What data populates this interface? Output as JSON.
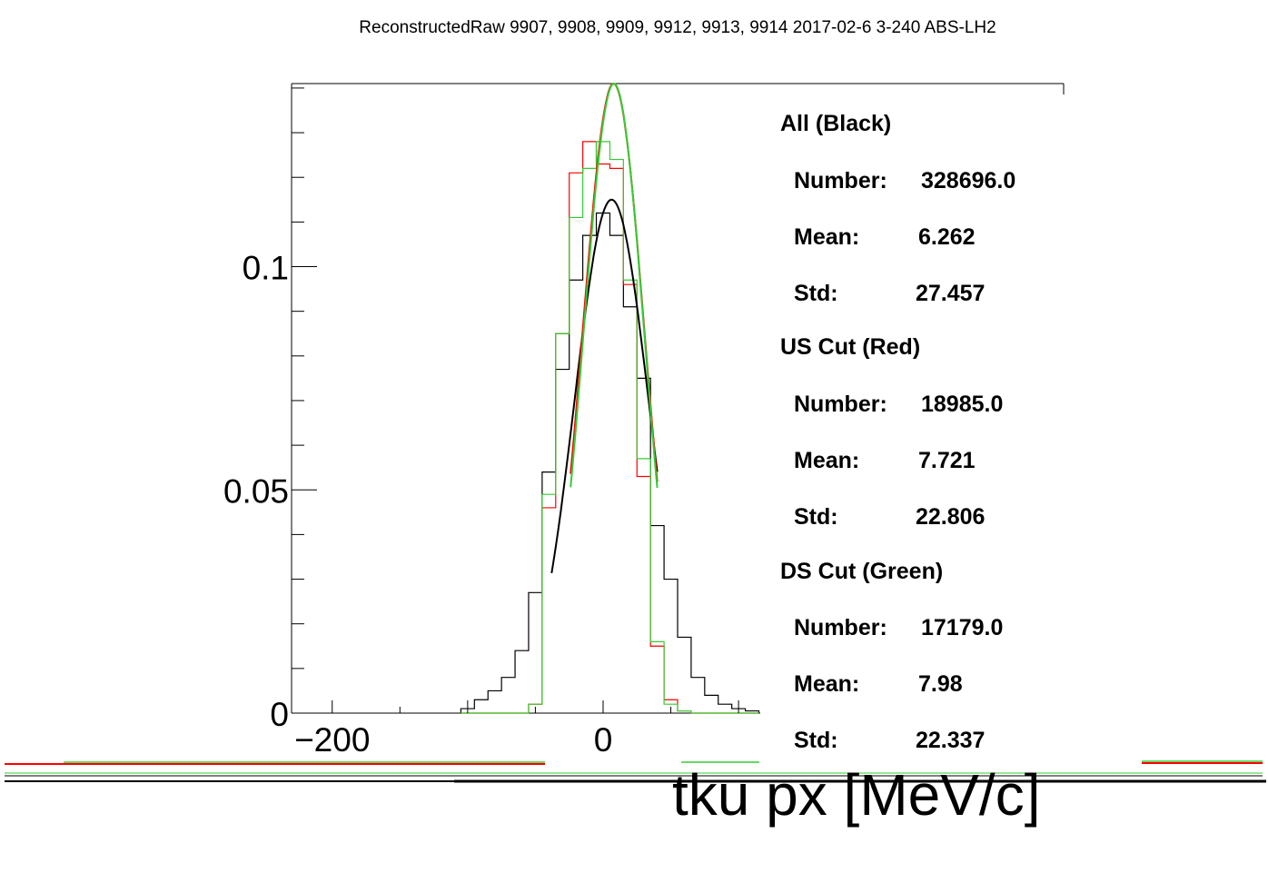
{
  "title": "ReconstructedRaw 9907, 9908, 9909, 9912, 9913, 9914 2017-02-6 3-240 ABS-LH2",
  "chart_data": {
    "type": "histogram",
    "xlabel": "tku px [MeV/c]",
    "ylabel": "",
    "xlim": [
      -230,
      340
    ],
    "ylim": [
      0,
      0.141
    ],
    "x_ticks": [
      "−200",
      "0"
    ],
    "y_ticks": [
      "0",
      "0.05",
      "0.1"
    ],
    "y_tick_values": [
      0,
      0.05,
      0.1
    ],
    "bin_width": 10,
    "bin_centers": [
      -100,
      -90,
      -80,
      -70,
      -60,
      -50,
      -40,
      -30,
      -20,
      -10,
      0,
      10,
      20,
      30,
      40,
      50,
      60,
      70,
      80,
      90,
      100,
      110
    ],
    "series": [
      {
        "name": "All (Black)",
        "color": "#000000",
        "values": [
          0.001,
          0.003,
          0.005,
          0.008,
          0.014,
          0.027,
          0.054,
          0.077,
          0.097,
          0.107,
          0.112,
          0.107,
          0.091,
          0.075,
          0.042,
          0.03,
          0.017,
          0.008,
          0.004,
          0.002,
          0.001,
          0.0005
        ],
        "fit": {
          "mean": 6.262,
          "sigma": 27.457,
          "peak": 0.115,
          "range": [
            -38,
            40
          ]
        }
      },
      {
        "name": "US Cut (Red)",
        "color": "#ff0000",
        "values": [
          0,
          0,
          0,
          0,
          0,
          0.002,
          0.046,
          0.085,
          0.121,
          0.128,
          0.123,
          0.122,
          0.096,
          0.053,
          0.015,
          0.003,
          0.0005,
          0,
          0,
          0,
          0,
          0
        ],
        "fit": {
          "mean": 7.721,
          "sigma": 22.806,
          "peak": 0.141,
          "range": [
            -24,
            40
          ]
        }
      },
      {
        "name": "DS Cut (Green)",
        "color": "#33cc33",
        "values": [
          0,
          0,
          0,
          0,
          0,
          0.002,
          0.049,
          0.085,
          0.111,
          0.122,
          0.128,
          0.124,
          0.097,
          0.057,
          0.016,
          0.002,
          0.0005,
          0,
          0,
          0,
          0,
          0
        ],
        "fit": {
          "mean": 7.98,
          "sigma": 22.337,
          "peak": 0.141,
          "range": [
            -24,
            40
          ]
        }
      }
    ]
  },
  "stats": {
    "all": {
      "heading": "All (Black)",
      "number_label": "Number:",
      "number": "328696.0",
      "mean_label": "Mean:",
      "mean": "6.262",
      "std_label": "Std:",
      "std": "27.457"
    },
    "us": {
      "heading": "US Cut (Red)",
      "number_label": "Number:",
      "number": "18985.0",
      "mean_label": "Mean:",
      "mean": "7.721",
      "std_label": "Std:",
      "std": "22.806"
    },
    "ds": {
      "heading": "DS Cut (Green)",
      "number_label": "Number:",
      "number": "17179.0",
      "mean_label": "Mean:",
      "mean": "7.98",
      "std_label": "Std:",
      "std": "22.337"
    }
  }
}
